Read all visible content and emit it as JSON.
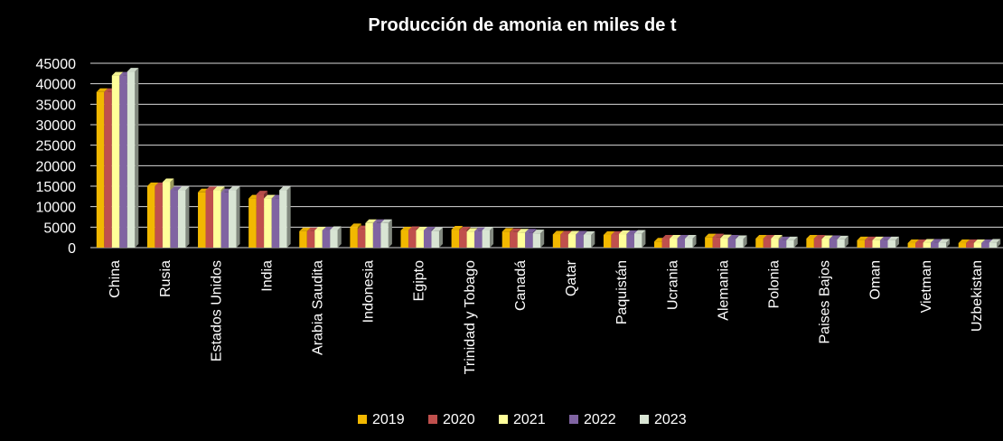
{
  "chart_data": {
    "type": "bar",
    "title": "Producción de amonia en miles de t",
    "xlabel": "",
    "ylabel": "",
    "ylim": [
      0,
      45000
    ],
    "y_ticks": [
      0,
      5000,
      10000,
      15000,
      20000,
      25000,
      30000,
      35000,
      40000,
      45000
    ],
    "y_tick_labels": [
      "0",
      "5000",
      "10000",
      "15000",
      "20000",
      "25000",
      "30000",
      "35000",
      "40000",
      "45000"
    ],
    "grid": true,
    "legend_position": "bottom",
    "categories": [
      "China",
      "Rusia",
      "Estados Unidos",
      "India",
      "Arabia Saudita",
      "Indonesia",
      "Egipto",
      "Trinidad y Tobago",
      "Canadá",
      "Qatar",
      "Paquistán",
      "Ucrania",
      "Alemania",
      "Polonia",
      "Paises Bajos",
      "Oman",
      "Vietman",
      "Uzbekistan"
    ],
    "series": [
      {
        "name": "2019",
        "color": "#F2B800",
        "values": [
          38000,
          15000,
          13500,
          12000,
          4000,
          5000,
          4200,
          4400,
          3900,
          3200,
          3100,
          1500,
          2500,
          2200,
          2200,
          1800,
          1100,
          1100
        ]
      },
      {
        "name": "2020",
        "color": "#C0504D",
        "values": [
          38000,
          15000,
          14000,
          13000,
          4000,
          4500,
          4300,
          4200,
          3800,
          3200,
          3100,
          2200,
          2500,
          2200,
          2200,
          1800,
          1100,
          1100
        ]
      },
      {
        "name": "2021",
        "color": "#FFFF99",
        "values": [
          42000,
          16000,
          14000,
          12000,
          4200,
          6000,
          4200,
          3900,
          3700,
          3200,
          3300,
          2200,
          2300,
          2200,
          2100,
          1800,
          1200,
          1100
        ]
      },
      {
        "name": "2022",
        "color": "#8064A2",
        "values": [
          42000,
          14000,
          13500,
          12000,
          4200,
          6000,
          4200,
          4000,
          3700,
          3200,
          3300,
          2200,
          2200,
          1800,
          2100,
          1800,
          1200,
          1100
        ]
      },
      {
        "name": "2023",
        "color": "#D9E5D4",
        "values": [
          43000,
          14000,
          14000,
          14000,
          4300,
          6000,
          4000,
          4200,
          3500,
          3100,
          3400,
          2200,
          2100,
          1800,
          2000,
          1800,
          1200,
          1200
        ]
      }
    ]
  }
}
